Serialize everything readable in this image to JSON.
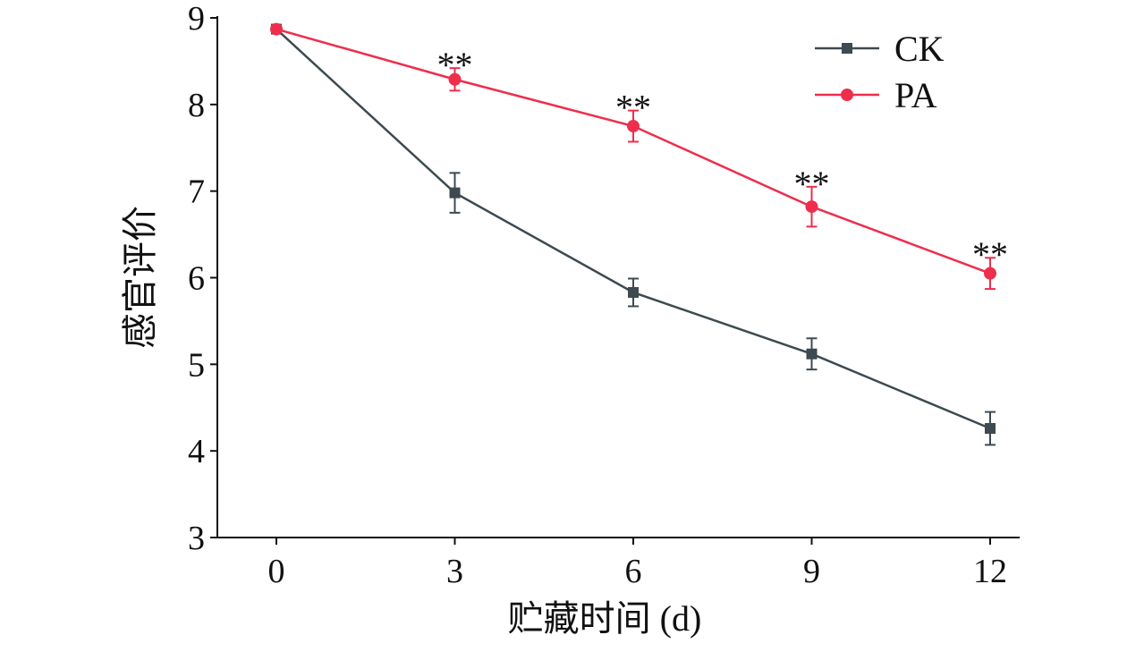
{
  "chart_data": {
    "type": "line",
    "title": "",
    "xlabel": "贮藏时间 (d)",
    "ylabel": "感官评价",
    "x": [
      0,
      3,
      6,
      9,
      12
    ],
    "x_ticks": [
      "0",
      "3",
      "6",
      "9",
      "12"
    ],
    "y_ticks": [
      "3",
      "4",
      "5",
      "6",
      "7",
      "8",
      "9"
    ],
    "xlim": [
      -1,
      12.5
    ],
    "ylim": [
      3,
      9
    ],
    "grid": false,
    "legend_position": "top-right",
    "series": [
      {
        "name": "CK",
        "color": "#3d4a50",
        "marker": "square",
        "values": [
          8.87,
          6.98,
          5.83,
          5.12,
          4.26
        ],
        "errors": [
          0,
          0.23,
          0.16,
          0.18,
          0.19
        ]
      },
      {
        "name": "PA",
        "color": "#ee2e4c",
        "marker": "circle",
        "values": [
          8.87,
          8.29,
          7.75,
          6.82,
          6.05
        ],
        "errors": [
          0,
          0.13,
          0.18,
          0.23,
          0.18
        ]
      }
    ],
    "annotations": [
      {
        "x": 3,
        "text": "**"
      },
      {
        "x": 6,
        "text": "**"
      },
      {
        "x": 9,
        "text": "**"
      },
      {
        "x": 12,
        "text": "**"
      }
    ]
  }
}
